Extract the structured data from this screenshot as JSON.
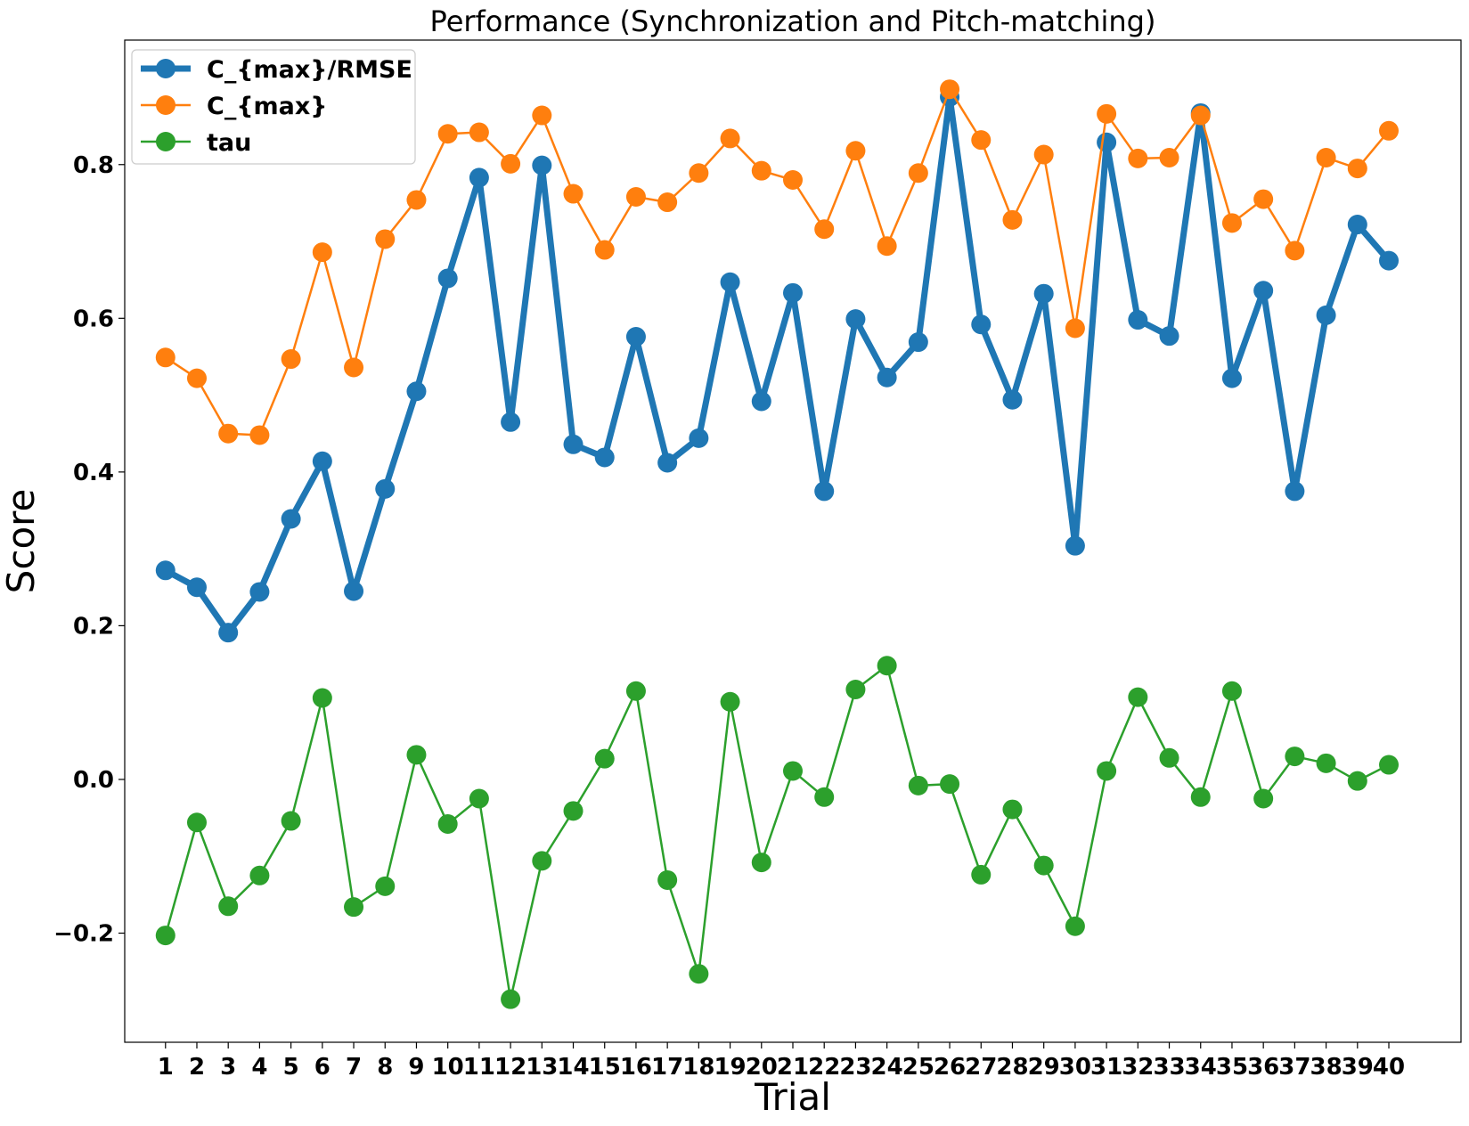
{
  "chart_data": {
    "type": "line",
    "title": "Performance (Synchronization and Pitch-matching)",
    "xlabel": "Trial",
    "ylabel": "Score",
    "x": [
      1,
      2,
      3,
      4,
      5,
      6,
      7,
      8,
      9,
      10,
      11,
      12,
      13,
      14,
      15,
      16,
      17,
      18,
      19,
      20,
      21,
      22,
      23,
      24,
      25,
      26,
      27,
      28,
      29,
      30,
      31,
      32,
      33,
      34,
      35,
      36,
      37,
      38,
      39,
      40
    ],
    "xtick_labels": [
      "1",
      "2",
      "3",
      "4",
      "5",
      "6",
      "7",
      "8",
      "9",
      "10",
      "11",
      "12",
      "13",
      "14",
      "15",
      "16",
      "17",
      "18",
      "19",
      "20",
      "21",
      "22",
      "23",
      "24",
      "25",
      "26",
      "27",
      "28",
      "29",
      "30",
      "31",
      "32",
      "33",
      "34",
      "35",
      "36",
      "37",
      "38",
      "39",
      "40"
    ],
    "yticks": [
      -0.2,
      0.0,
      0.2,
      0.4,
      0.6,
      0.8
    ],
    "ytick_labels": [
      "−0.2",
      "0.0",
      "0.2",
      "0.4",
      "0.6",
      "0.8"
    ],
    "xlim": [
      -0.3,
      42.3
    ],
    "ylim": [
      -0.342,
      0.962
    ],
    "grid": false,
    "legend_position": "top-left",
    "series": [
      {
        "name": "C_{max}/RMSE",
        "color": "#1f77b4",
        "values": [
          0.272,
          0.25,
          0.191,
          0.244,
          0.339,
          0.414,
          0.245,
          0.378,
          0.505,
          0.652,
          0.783,
          0.465,
          0.799,
          0.436,
          0.419,
          0.576,
          0.412,
          0.444,
          0.647,
          0.492,
          0.633,
          0.375,
          0.599,
          0.523,
          0.569,
          0.888,
          0.592,
          0.494,
          0.632,
          0.304,
          0.829,
          0.598,
          0.577,
          0.867,
          0.522,
          0.636,
          0.375,
          0.604,
          0.722,
          0.675
        ]
      },
      {
        "name": "C_{max}",
        "color": "#ff7f0e",
        "values": [
          0.549,
          0.522,
          0.45,
          0.448,
          0.547,
          0.686,
          0.536,
          0.703,
          0.754,
          0.84,
          0.842,
          0.801,
          0.864,
          0.762,
          0.689,
          0.758,
          0.751,
          0.789,
          0.834,
          0.792,
          0.78,
          0.716,
          0.818,
          0.694,
          0.789,
          0.898,
          0.832,
          0.728,
          0.813,
          0.587,
          0.866,
          0.808,
          0.809,
          0.864,
          0.724,
          0.755,
          0.688,
          0.809,
          0.795,
          0.844
        ]
      },
      {
        "name": "tau",
        "color": "#2ca02c",
        "values": [
          -0.203,
          -0.056,
          -0.165,
          -0.125,
          -0.054,
          0.106,
          -0.166,
          -0.139,
          0.032,
          -0.058,
          -0.025,
          -0.286,
          -0.106,
          -0.041,
          0.027,
          0.115,
          -0.131,
          -0.253,
          0.101,
          -0.108,
          0.011,
          -0.023,
          0.117,
          0.148,
          -0.008,
          -0.006,
          -0.124,
          -0.039,
          -0.112,
          -0.191,
          0.011,
          0.107,
          0.028,
          -0.023,
          0.115,
          -0.025,
          0.03,
          0.021,
          -0.002,
          0.019
        ]
      }
    ]
  }
}
